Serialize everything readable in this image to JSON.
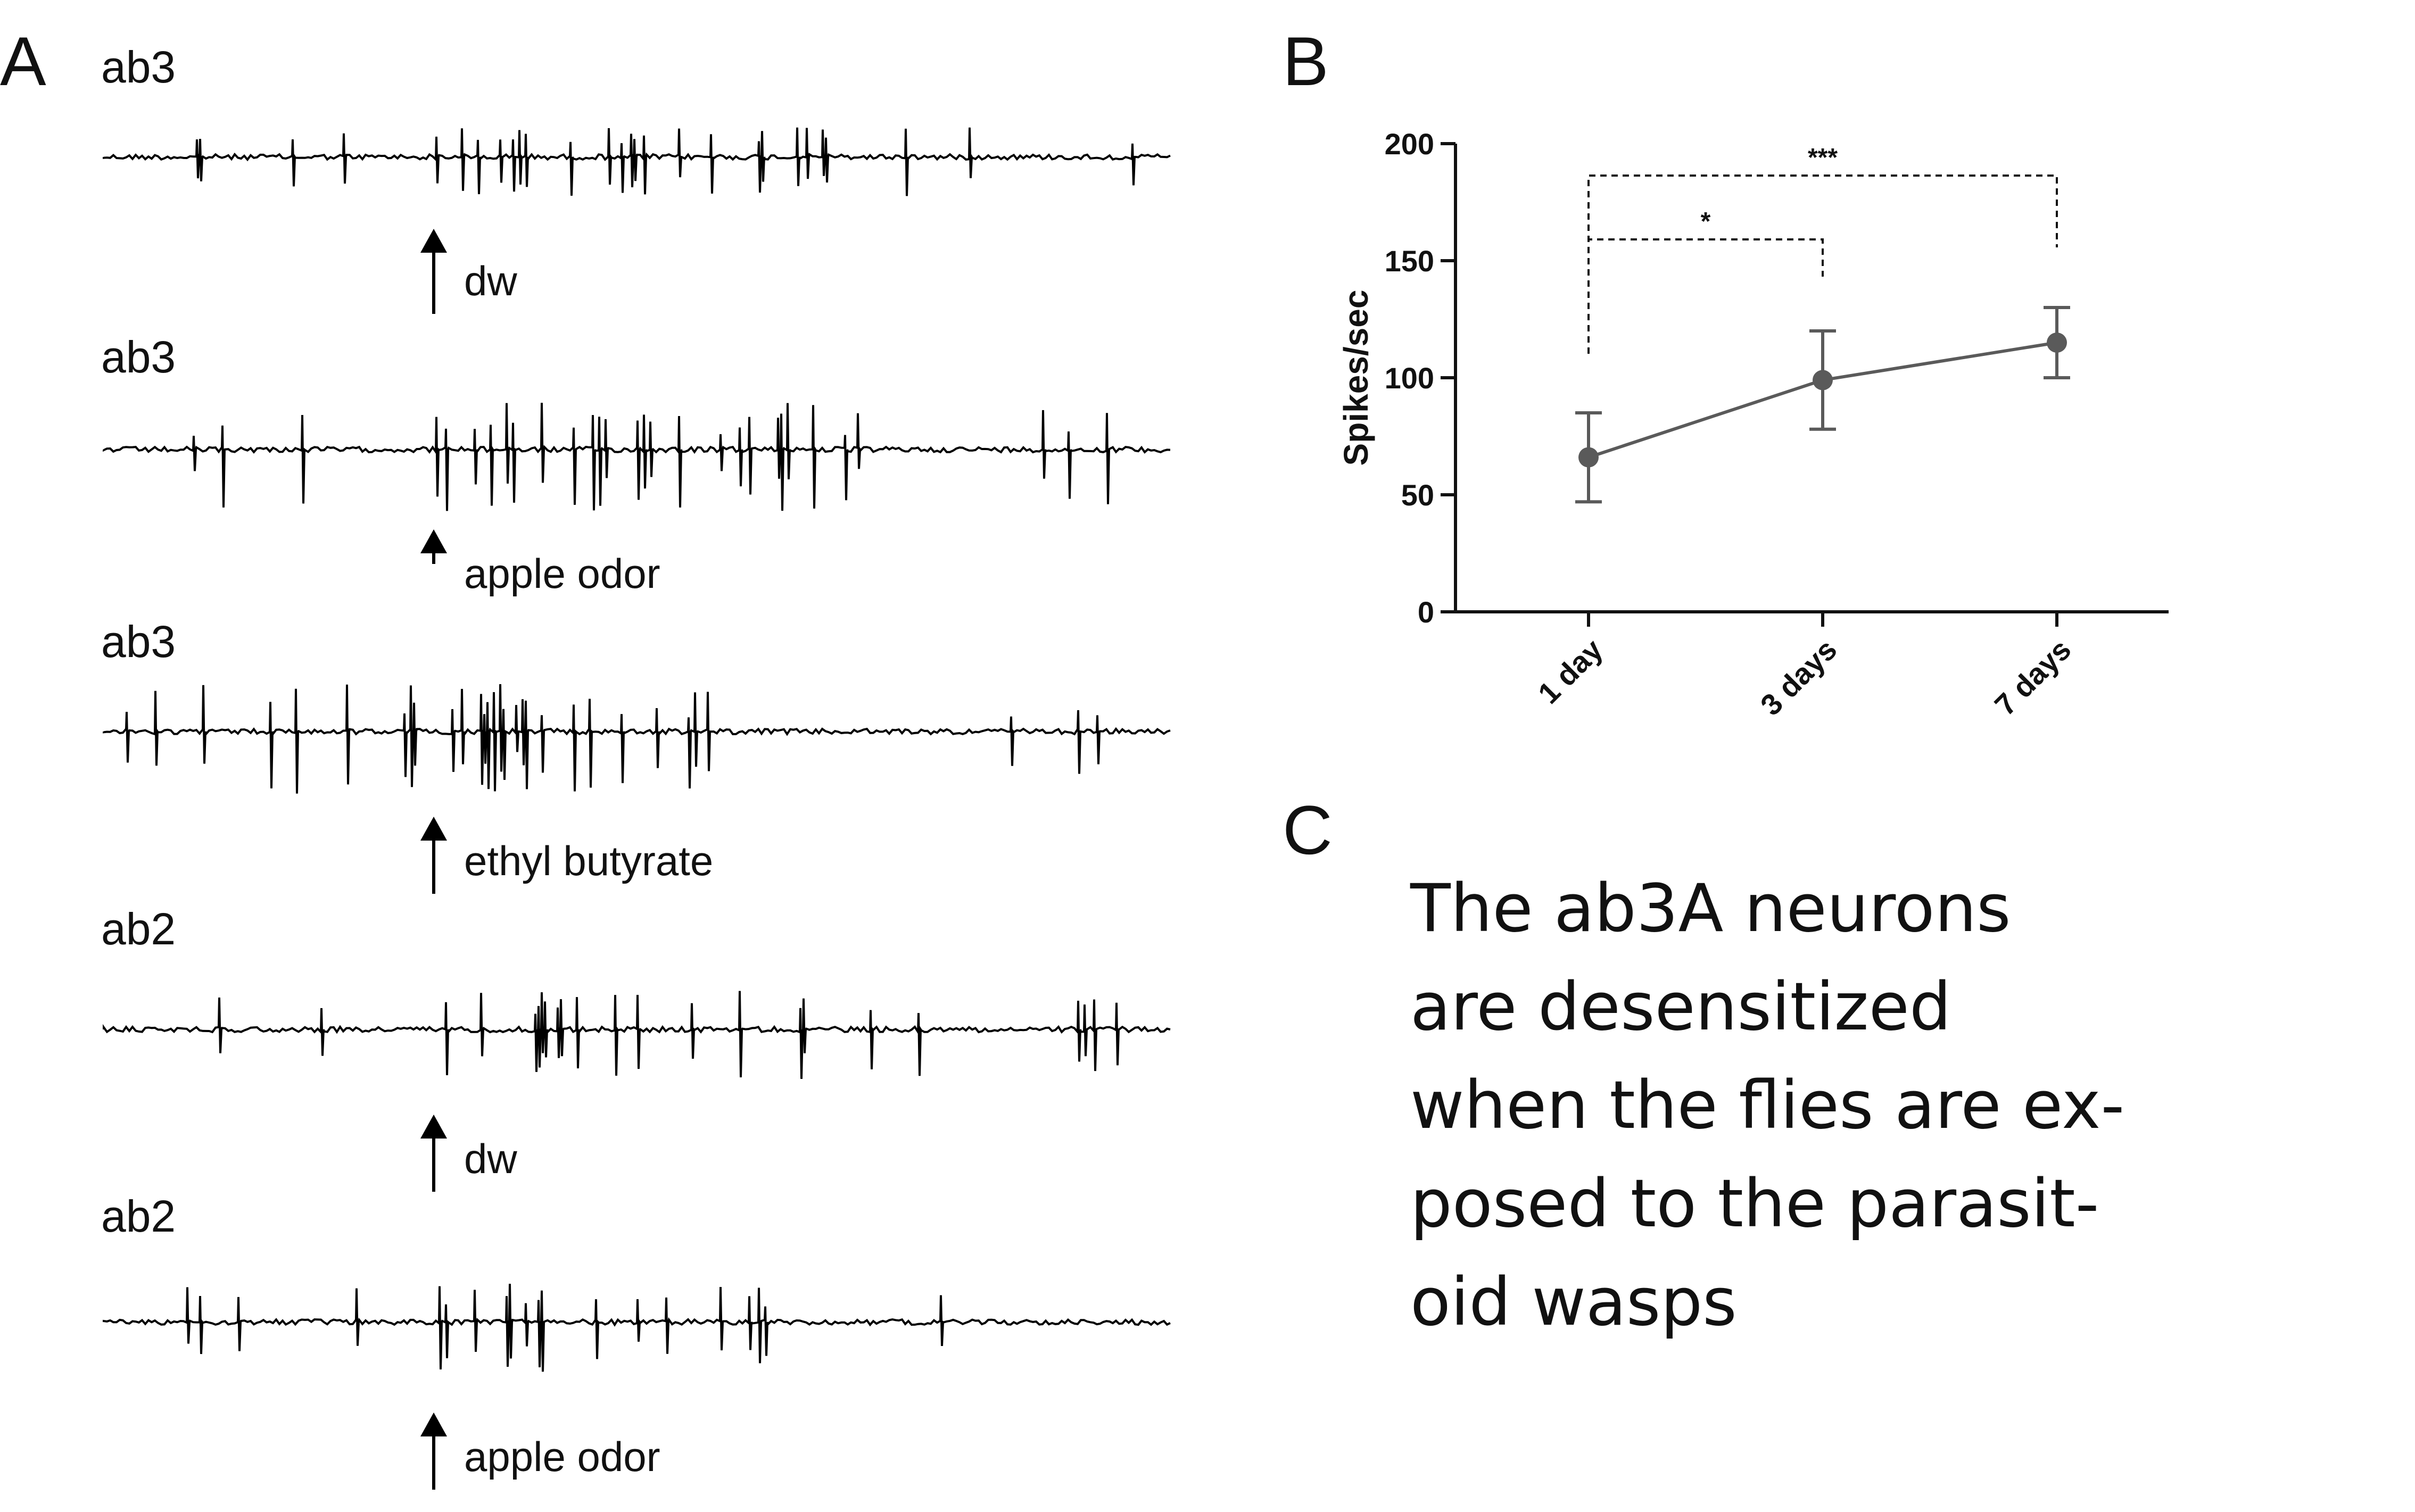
{
  "panel_labels": {
    "a": "A",
    "b": "B",
    "c": "C"
  },
  "traces": [
    {
      "label": "ab3",
      "stimulus": "dw",
      "burst": "low"
    },
    {
      "label": "ab3",
      "stimulus": "apple odor",
      "burst": "high"
    },
    {
      "label": "ab3",
      "stimulus": "ethyl butyrate",
      "burst": "high"
    },
    {
      "label": "ab2",
      "stimulus": "dw",
      "burst": "medium"
    },
    {
      "label": "ab2",
      "stimulus": "apple odor",
      "burst": "medium"
    }
  ],
  "chart_data": {
    "type": "line",
    "title": "",
    "xlabel": "",
    "ylabel": "Spikes/sec",
    "categories": [
      "1 day",
      "3 days",
      "7 days"
    ],
    "series": [
      {
        "values": [
          66,
          99,
          115
        ],
        "error": [
          19,
          21,
          15
        ]
      }
    ],
    "ylim": [
      0,
      200
    ],
    "yticks": [
      "0",
      "50",
      "100",
      "150",
      "200"
    ],
    "significance": [
      {
        "from": "1 day",
        "to": "3 days",
        "label": "*"
      },
      {
        "from": "1 day",
        "to": "7 days",
        "label": "***"
      }
    ],
    "colors": {
      "series": "#5a5a5a",
      "axis": "#111111"
    }
  },
  "panel_c": {
    "lines": [
      "The ab3A neurons",
      "are desensitized",
      "when the flies are ex-",
      "posed to the parasit-",
      "oid wasps"
    ]
  }
}
